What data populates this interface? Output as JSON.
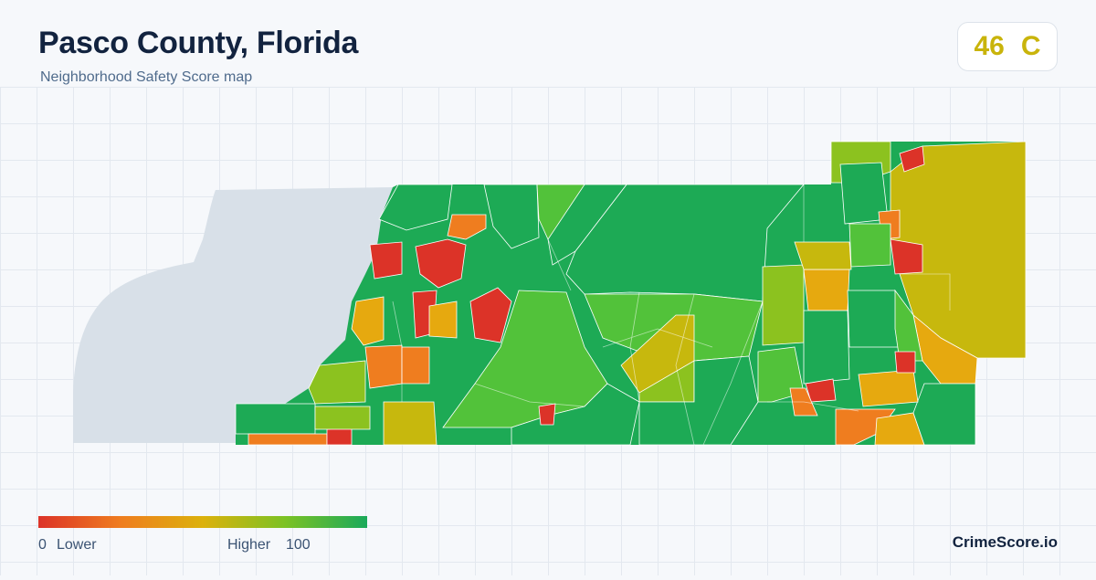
{
  "header": {
    "title": "Pasco County, Florida",
    "subtitle": "Neighborhood Safety Score map"
  },
  "score_badge": {
    "score": "46",
    "grade": "C",
    "color": "#c9b40b"
  },
  "legend": {
    "min_value": "0",
    "min_label": "Lower",
    "max_label": "Higher",
    "max_value": "100",
    "colors": [
      "#dc3328",
      "#ef7d1f",
      "#dcb10c",
      "#7cc224",
      "#1aa95a"
    ]
  },
  "brand": "CrimeScore.io",
  "map": {
    "water_color": "#d8e0e8",
    "palette": {
      "low": "#dc3328",
      "low_mid": "#ef7d1f",
      "mid": "#e6a90f",
      "mid_high": "#c7b80d",
      "high": "#8cc21f",
      "higher": "#52c23a",
      "highest": "#1daa55"
    }
  }
}
